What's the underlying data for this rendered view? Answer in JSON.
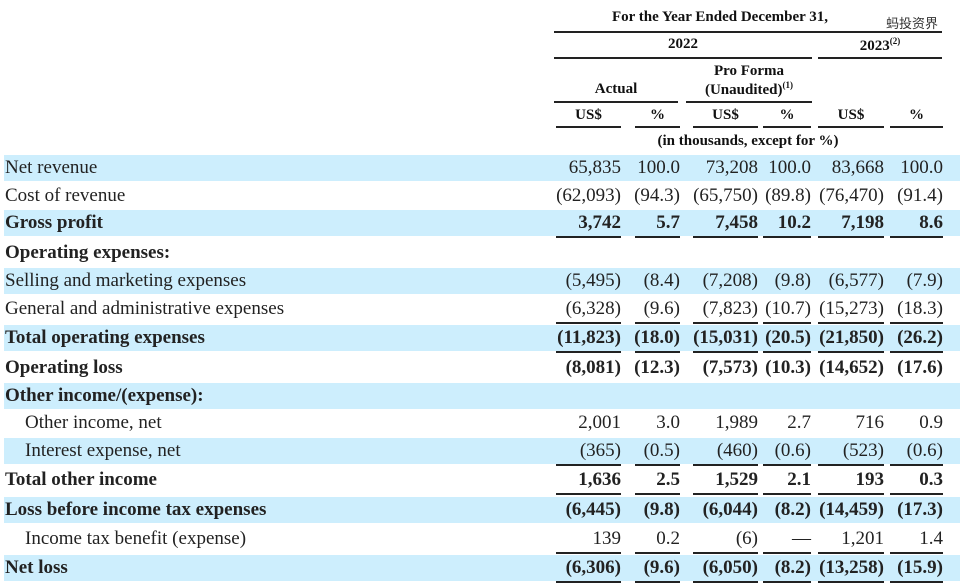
{
  "header": {
    "period": "For the Year Ended December 31,",
    "year_2022": "2022",
    "year_2023": "2023",
    "year_2023_note": "(2)",
    "actual": "Actual",
    "pro_forma_line1": "Pro Forma",
    "pro_forma_line2": "(Unaudited)",
    "pro_forma_note": "(1)",
    "col_labels": [
      "US$",
      "%",
      "US$",
      "%",
      "US$",
      "%"
    ],
    "units": "(in thousands, except for %)"
  },
  "watermark": "蚂投资界",
  "colors": {
    "shade": "#cdeefd"
  },
  "rows": [
    {
      "label": "Net revenue",
      "bold": false,
      "indent": false,
      "shaded": true,
      "underline": false,
      "values": [
        "65,835",
        "100.0",
        "73,208",
        "100.0",
        "83,668",
        "100.0"
      ]
    },
    {
      "label": "Cost of revenue",
      "bold": false,
      "indent": false,
      "shaded": false,
      "underline": false,
      "values": [
        "(62,093)",
        "(94.3)",
        "(65,750)",
        "(89.8)",
        "(76,470)",
        "(91.4)"
      ]
    },
    {
      "label": "Gross profit",
      "bold": true,
      "indent": false,
      "shaded": true,
      "underline": true,
      "values": [
        "3,742",
        "5.7",
        "7,458",
        "10.2",
        "7,198",
        "8.6"
      ]
    },
    {
      "label": "Operating expenses:",
      "bold": true,
      "indent": false,
      "shaded": false,
      "underline": false,
      "values": [
        "",
        "",
        "",
        "",
        "",
        ""
      ]
    },
    {
      "label": "Selling and marketing expenses",
      "bold": false,
      "indent": false,
      "shaded": true,
      "underline": false,
      "values": [
        "(5,495)",
        "(8.4)",
        "(7,208)",
        "(9.8)",
        "(6,577)",
        "(7.9)"
      ]
    },
    {
      "label": "General and administrative expenses",
      "bold": false,
      "indent": false,
      "shaded": false,
      "underline": true,
      "values": [
        "(6,328)",
        "(9.6)",
        "(7,823)",
        "(10.7)",
        "(15,273)",
        "(18.3)"
      ]
    },
    {
      "label": "Total operating expenses",
      "bold": true,
      "indent": false,
      "shaded": true,
      "underline": true,
      "values": [
        "(11,823)",
        "(18.0)",
        "(15,031)",
        "(20.5)",
        "(21,850)",
        "(26.2)"
      ]
    },
    {
      "label": "Operating loss",
      "bold": true,
      "indent": false,
      "shaded": false,
      "underline": false,
      "values": [
        "(8,081)",
        "(12.3)",
        "(7,573)",
        "(10.3)",
        "(14,652)",
        "(17.6)"
      ]
    },
    {
      "label": "Other income/(expense):",
      "bold": true,
      "indent": false,
      "shaded": true,
      "underline": false,
      "values": [
        "",
        "",
        "",
        "",
        "",
        ""
      ]
    },
    {
      "label": "Other income, net",
      "bold": false,
      "indent": true,
      "shaded": false,
      "underline": false,
      "values": [
        "2,001",
        "3.0",
        "1,989",
        "2.7",
        "716",
        "0.9"
      ]
    },
    {
      "label": "Interest expense, net",
      "bold": false,
      "indent": true,
      "shaded": true,
      "underline": true,
      "values": [
        "(365)",
        "(0.5)",
        "(460)",
        "(0.6)",
        "(523)",
        "(0.6)"
      ]
    },
    {
      "label": "Total other income",
      "bold": true,
      "indent": false,
      "shaded": false,
      "underline": true,
      "values": [
        "1,636",
        "2.5",
        "1,529",
        "2.1",
        "193",
        "0.3"
      ]
    },
    {
      "label": "Loss before income tax expenses",
      "bold": true,
      "indent": false,
      "shaded": true,
      "underline": false,
      "values": [
        "(6,445)",
        "(9.8)",
        "(6,044)",
        "(8.2)",
        "(14,459)",
        "(17.3)"
      ]
    },
    {
      "label": "Income tax benefit (expense)",
      "bold": false,
      "indent": true,
      "shaded": false,
      "underline": true,
      "values": [
        "139",
        "0.2",
        "(6)",
        "—",
        "1,201",
        "1.4"
      ]
    },
    {
      "label": "Net loss",
      "bold": true,
      "indent": false,
      "shaded": true,
      "underline": true,
      "values": [
        "(6,306)",
        "(9.6)",
        "(6,050)",
        "(8.2)",
        "(13,258)",
        "(15.9)"
      ]
    }
  ]
}
